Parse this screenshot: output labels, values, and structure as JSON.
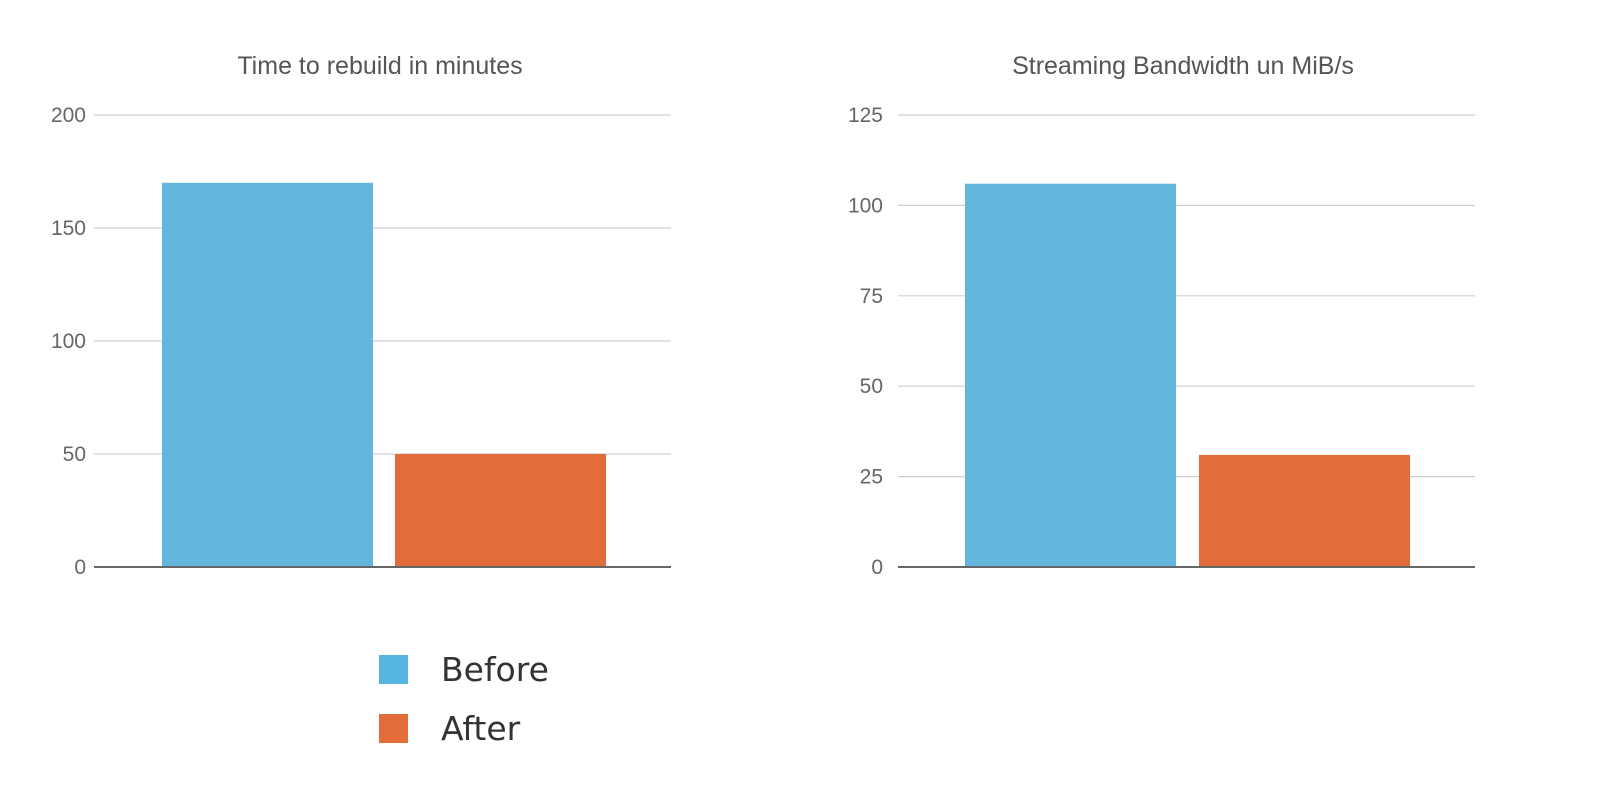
{
  "chart_data": [
    {
      "type": "bar",
      "title": "Time to rebuild in minutes",
      "xlabel": "",
      "ylabel": "",
      "ylim": [
        0,
        200
      ],
      "yticks": [
        0,
        50,
        100,
        150,
        200
      ],
      "grid": true,
      "series": [
        {
          "name": "Before",
          "color": "#63b6db",
          "values": [
            170
          ]
        },
        {
          "name": "After",
          "color": "#e26d38",
          "values": [
            50
          ]
        }
      ]
    },
    {
      "type": "bar",
      "title": "Streaming Bandwidth un MiB/s",
      "xlabel": "",
      "ylabel": "",
      "ylim": [
        0,
        125
      ],
      "yticks": [
        0,
        25,
        50,
        75,
        100,
        125
      ],
      "grid": true,
      "series": [
        {
          "name": "Before",
          "color": "#63b6db",
          "values": [
            106
          ]
        },
        {
          "name": "After",
          "color": "#e26d38",
          "values": [
            31
          ]
        }
      ]
    }
  ],
  "legend": {
    "placement": "bottom-center",
    "items": [
      {
        "label": "Before",
        "color": "#56b4e3"
      },
      {
        "label": "After",
        "color": "#e36d39"
      }
    ]
  }
}
